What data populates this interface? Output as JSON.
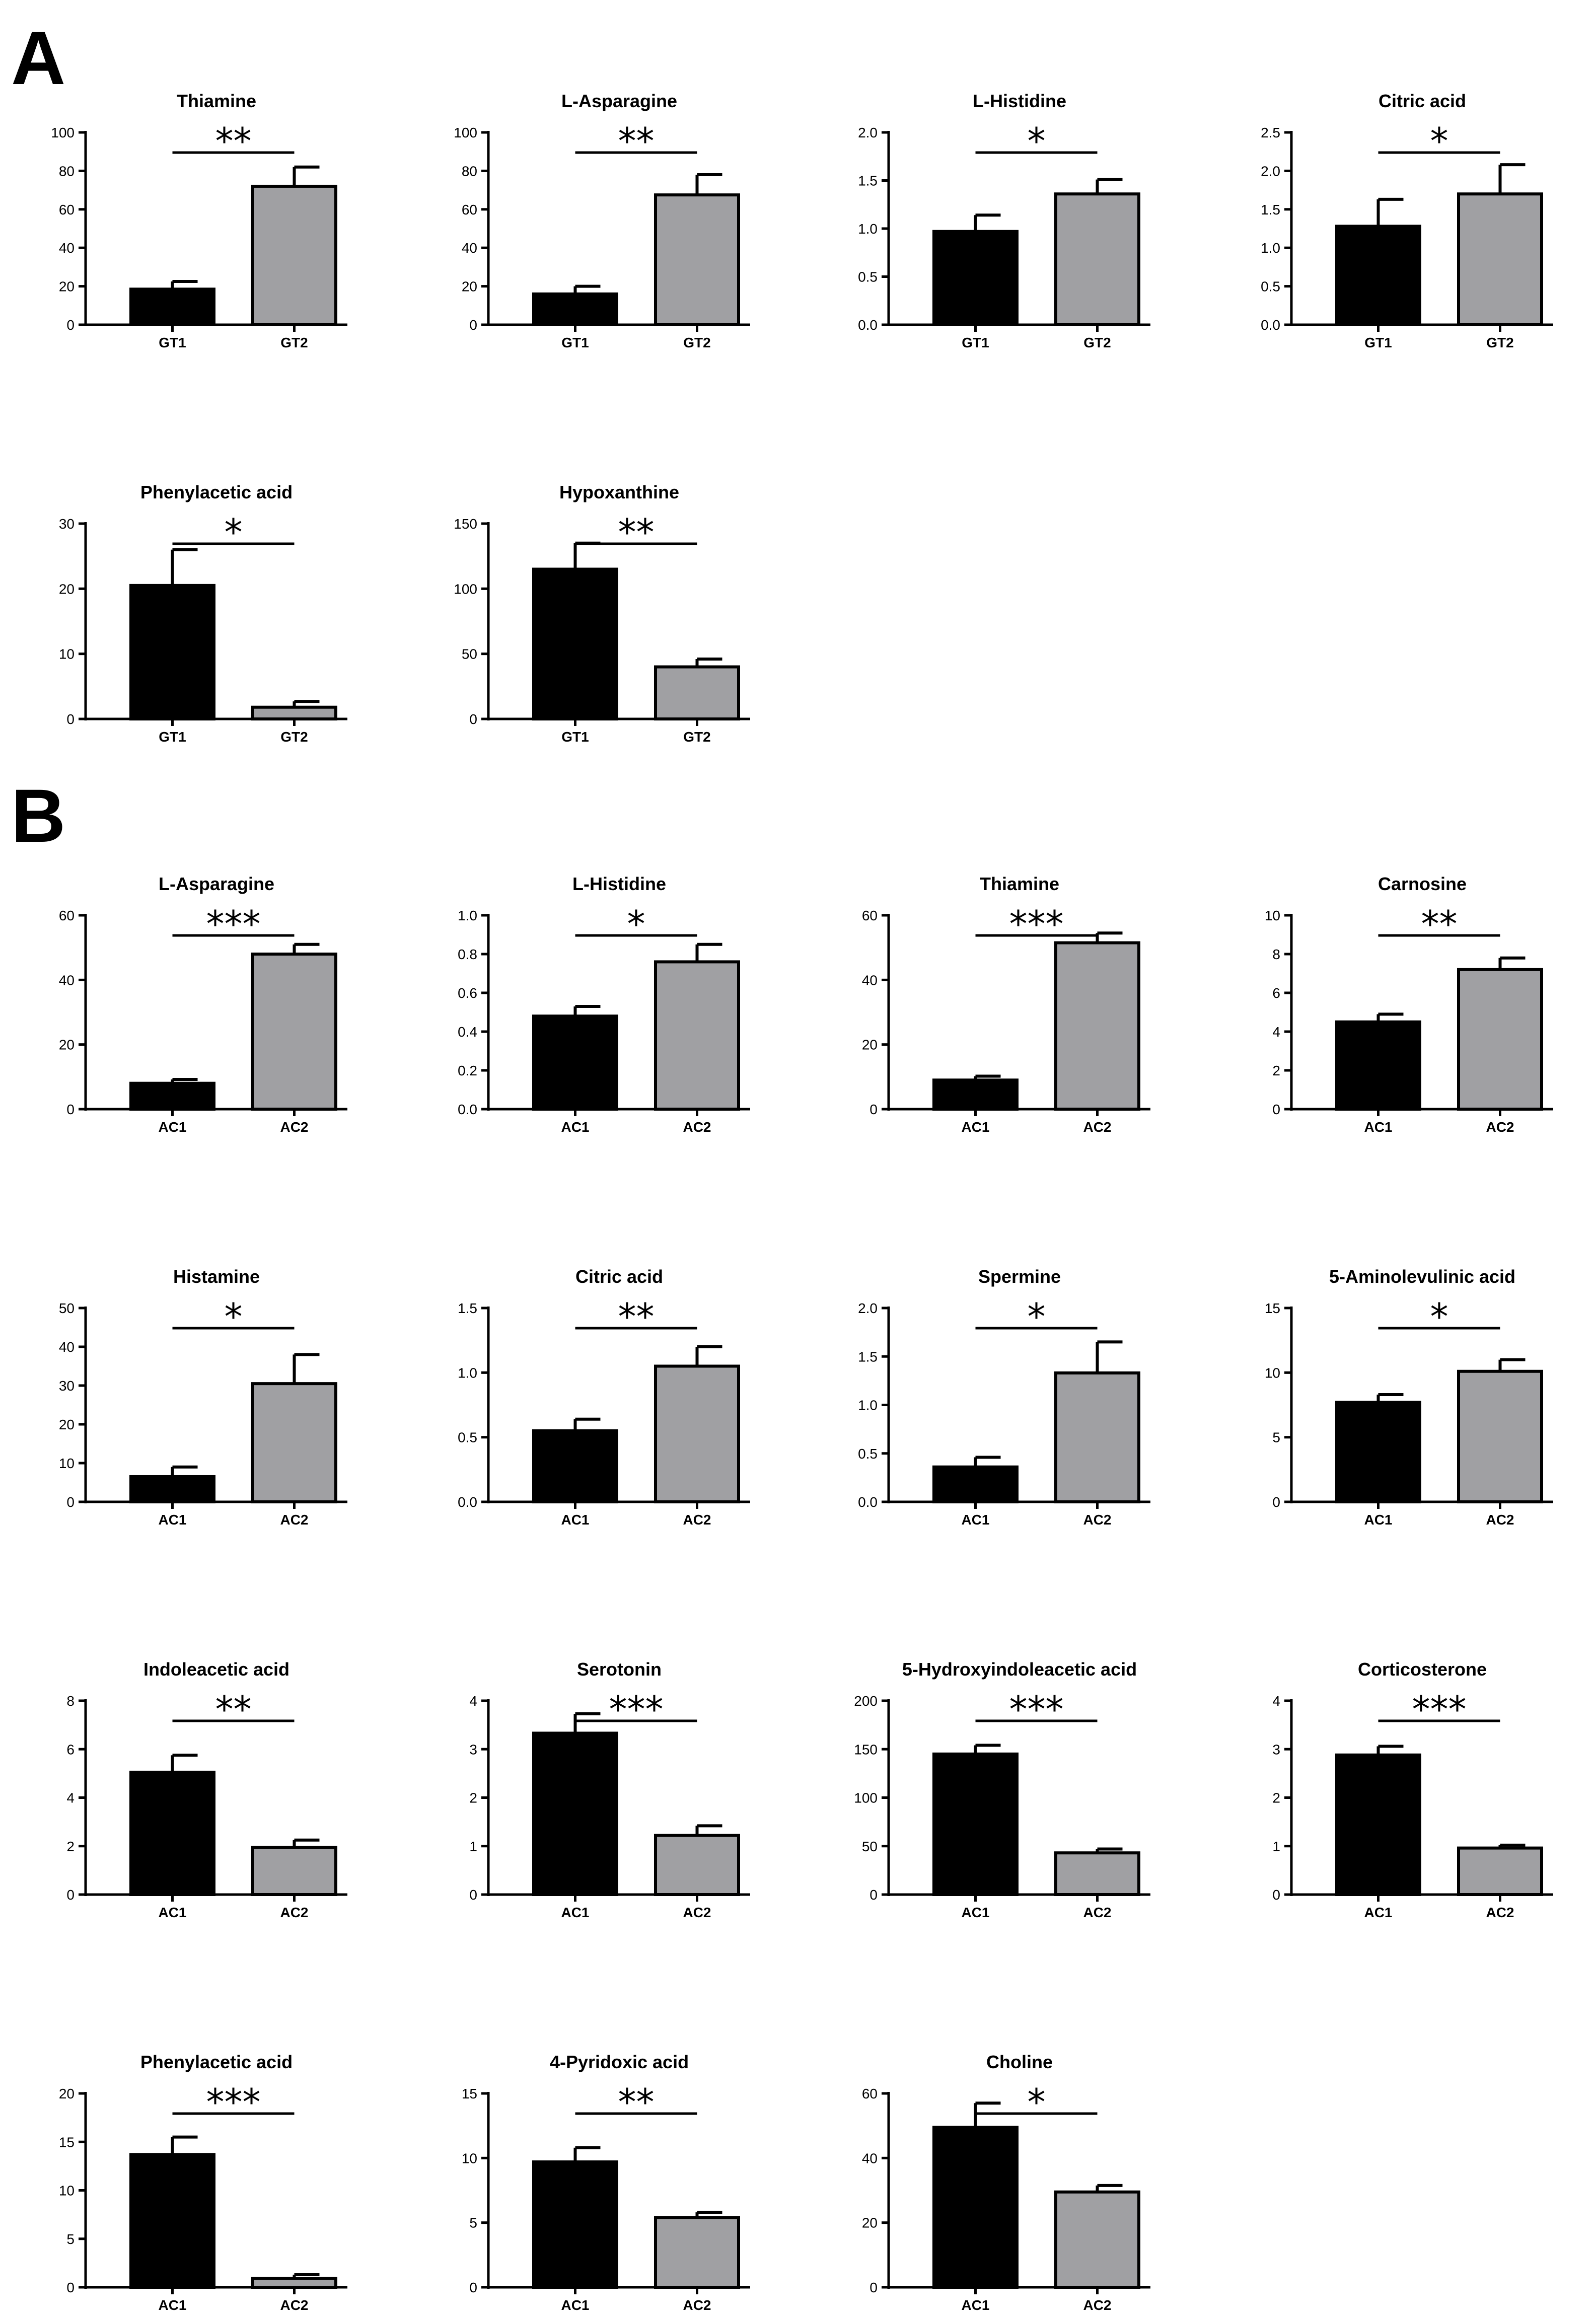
{
  "panels": [
    {
      "label": "A"
    },
    {
      "label": "B"
    }
  ],
  "colors": {
    "group1": "#000000",
    "group2": "#a0a0a3",
    "axis": "#000000"
  },
  "chart_data": [
    {
      "panel": "A",
      "type": "bar",
      "title": "Thiamine",
      "categories": [
        "GT1",
        "GT2"
      ],
      "values": [
        18.5,
        72
      ],
      "errors": [
        4,
        10
      ],
      "ylim": [
        0,
        100
      ],
      "yticks": [
        0,
        20,
        40,
        60,
        80,
        100
      ],
      "ytick_labels": [
        "0",
        "20",
        "40",
        "60",
        "80",
        "100"
      ],
      "significance": "**"
    },
    {
      "panel": "A",
      "type": "bar",
      "title": "L-Asparagine",
      "categories": [
        "GT1",
        "GT2"
      ],
      "values": [
        16,
        67.5
      ],
      "errors": [
        4,
        10.5
      ],
      "ylim": [
        0,
        100
      ],
      "yticks": [
        0,
        20,
        40,
        60,
        80,
        100
      ],
      "ytick_labels": [
        "0",
        "20",
        "40",
        "60",
        "80",
        "100"
      ],
      "significance": "**"
    },
    {
      "panel": "A",
      "type": "bar",
      "title": "L-Histidine",
      "categories": [
        "GT1",
        "GT2"
      ],
      "values": [
        0.97,
        1.36
      ],
      "errors": [
        0.17,
        0.15
      ],
      "ylim": [
        0,
        2.0
      ],
      "yticks": [
        0,
        0.5,
        1.0,
        1.5,
        2.0
      ],
      "ytick_labels": [
        "0.0",
        "0.5",
        "1.0",
        "1.5",
        "2.0"
      ],
      "significance": "*"
    },
    {
      "panel": "A",
      "type": "bar",
      "title": "Citric acid",
      "categories": [
        "GT1",
        "GT2"
      ],
      "values": [
        1.28,
        1.7
      ],
      "errors": [
        0.35,
        0.38
      ],
      "ylim": [
        0,
        2.5
      ],
      "yticks": [
        0,
        0.5,
        1.0,
        1.5,
        2.0,
        2.5
      ],
      "ytick_labels": [
        "0.0",
        "0.5",
        "1.0",
        "1.5",
        "2.0",
        "2.5"
      ],
      "significance": "*"
    },
    {
      "panel": "A",
      "type": "bar",
      "title": "Phenylacetic acid",
      "categories": [
        "GT1",
        "GT2"
      ],
      "values": [
        20.5,
        1.8
      ],
      "errors": [
        5.5,
        0.9
      ],
      "ylim": [
        0,
        30
      ],
      "yticks": [
        0,
        10,
        20,
        30
      ],
      "ytick_labels": [
        "0",
        "10",
        "20",
        "30"
      ],
      "significance": "*"
    },
    {
      "panel": "A",
      "type": "bar",
      "title": "Hypoxanthine",
      "categories": [
        "GT1",
        "GT2"
      ],
      "values": [
        115,
        40
      ],
      "errors": [
        20,
        6
      ],
      "ylim": [
        0,
        150
      ],
      "yticks": [
        0,
        50,
        100,
        150
      ],
      "ytick_labels": [
        "0",
        "50",
        "100",
        "150"
      ],
      "significance": "**"
    },
    {
      "panel": "B",
      "type": "bar",
      "title": "L-Asparagine",
      "categories": [
        "AC1",
        "AC2"
      ],
      "values": [
        8,
        48
      ],
      "errors": [
        1.2,
        3
      ],
      "ylim": [
        0,
        60
      ],
      "yticks": [
        0,
        20,
        40,
        60
      ],
      "ytick_labels": [
        "0",
        "20",
        "40",
        "60"
      ],
      "significance": "***"
    },
    {
      "panel": "B",
      "type": "bar",
      "title": "L-Histidine",
      "categories": [
        "AC1",
        "AC2"
      ],
      "values": [
        0.48,
        0.76
      ],
      "errors": [
        0.05,
        0.09
      ],
      "ylim": [
        0,
        1.0
      ],
      "yticks": [
        0,
        0.2,
        0.4,
        0.6,
        0.8,
        1.0
      ],
      "ytick_labels": [
        "0.0",
        "0.2",
        "0.4",
        "0.6",
        "0.8",
        "1.0"
      ],
      "significance": "*"
    },
    {
      "panel": "B",
      "type": "bar",
      "title": "Thiamine",
      "categories": [
        "AC1",
        "AC2"
      ],
      "values": [
        9,
        51.5
      ],
      "errors": [
        1.2,
        3
      ],
      "ylim": [
        0,
        60
      ],
      "yticks": [
        0,
        20,
        40,
        60
      ],
      "ytick_labels": [
        "0",
        "20",
        "40",
        "60"
      ],
      "significance": "***"
    },
    {
      "panel": "B",
      "type": "bar",
      "title": "Carnosine",
      "categories": [
        "AC1",
        "AC2"
      ],
      "values": [
        4.5,
        7.2
      ],
      "errors": [
        0.4,
        0.6
      ],
      "ylim": [
        0,
        10
      ],
      "yticks": [
        0,
        2,
        4,
        6,
        8,
        10
      ],
      "ytick_labels": [
        "0",
        "2",
        "4",
        "6",
        "8",
        "10"
      ],
      "significance": "**"
    },
    {
      "panel": "B",
      "type": "bar",
      "title": "Histamine",
      "categories": [
        "AC1",
        "AC2"
      ],
      "values": [
        6.5,
        30.5
      ],
      "errors": [
        2.5,
        7.5
      ],
      "ylim": [
        0,
        50
      ],
      "yticks": [
        0,
        10,
        20,
        30,
        40,
        50
      ],
      "ytick_labels": [
        "0",
        "10",
        "20",
        "30",
        "40",
        "50"
      ],
      "significance": "*"
    },
    {
      "panel": "B",
      "type": "bar",
      "title": "Citric acid",
      "categories": [
        "AC1",
        "AC2"
      ],
      "values": [
        0.55,
        1.05
      ],
      "errors": [
        0.09,
        0.15
      ],
      "ylim": [
        0,
        1.5
      ],
      "yticks": [
        0,
        0.5,
        1.0,
        1.5
      ],
      "ytick_labels": [
        "0.0",
        "0.5",
        "1.0",
        "1.5"
      ],
      "significance": "**"
    },
    {
      "panel": "B",
      "type": "bar",
      "title": "Spermine",
      "categories": [
        "AC1",
        "AC2"
      ],
      "values": [
        0.36,
        1.33
      ],
      "errors": [
        0.1,
        0.32
      ],
      "ylim": [
        0,
        2.0
      ],
      "yticks": [
        0,
        0.5,
        1.0,
        1.5,
        2.0
      ],
      "ytick_labels": [
        "0.0",
        "0.5",
        "1.0",
        "1.5",
        "2.0"
      ],
      "significance": "*"
    },
    {
      "panel": "B",
      "type": "bar",
      "title": "5-Aminolevulinic acid",
      "categories": [
        "AC1",
        "AC2"
      ],
      "values": [
        7.7,
        10.1
      ],
      "errors": [
        0.6,
        0.9
      ],
      "ylim": [
        0,
        15
      ],
      "yticks": [
        0,
        5,
        10,
        15
      ],
      "ytick_labels": [
        "0",
        "5",
        "10",
        "15"
      ],
      "significance": "*"
    },
    {
      "panel": "B",
      "type": "bar",
      "title": "Indoleacetic acid",
      "categories": [
        "AC1",
        "AC2"
      ],
      "values": [
        5.05,
        1.95
      ],
      "errors": [
        0.7,
        0.3
      ],
      "ylim": [
        0,
        8
      ],
      "yticks": [
        0,
        2,
        4,
        6,
        8
      ],
      "ytick_labels": [
        "0",
        "2",
        "4",
        "6",
        "8"
      ],
      "significance": "**"
    },
    {
      "panel": "B",
      "type": "bar",
      "title": "Serotonin",
      "categories": [
        "AC1",
        "AC2"
      ],
      "values": [
        3.33,
        1.22
      ],
      "errors": [
        0.4,
        0.2
      ],
      "ylim": [
        0,
        4
      ],
      "yticks": [
        0,
        1,
        2,
        3,
        4
      ],
      "ytick_labels": [
        "0",
        "1",
        "2",
        "3",
        "4"
      ],
      "significance": "***"
    },
    {
      "panel": "B",
      "type": "bar",
      "title": "5-Hydroxyindoleacetic acid",
      "categories": [
        "AC1",
        "AC2"
      ],
      "values": [
        145,
        43
      ],
      "errors": [
        9,
        4
      ],
      "ylim": [
        0,
        200
      ],
      "yticks": [
        0,
        50,
        100,
        150,
        200
      ],
      "ytick_labels": [
        "0",
        "50",
        "100",
        "150",
        "200"
      ],
      "significance": "***"
    },
    {
      "panel": "B",
      "type": "bar",
      "title": "Corticosterone",
      "categories": [
        "AC1",
        "AC2"
      ],
      "values": [
        2.88,
        0.96
      ],
      "errors": [
        0.18,
        0.06
      ],
      "ylim": [
        0,
        4
      ],
      "yticks": [
        0,
        1,
        2,
        3,
        4
      ],
      "ytick_labels": [
        "0",
        "1",
        "2",
        "3",
        "4"
      ],
      "significance": "***"
    },
    {
      "panel": "B",
      "type": "bar",
      "title": "Phenylacetic acid",
      "categories": [
        "AC1",
        "AC2"
      ],
      "values": [
        13.7,
        0.9
      ],
      "errors": [
        1.8,
        0.4
      ],
      "ylim": [
        0,
        20
      ],
      "yticks": [
        0,
        5,
        10,
        15,
        20
      ],
      "ytick_labels": [
        "0",
        "5",
        "10",
        "15",
        "20"
      ],
      "significance": "***"
    },
    {
      "panel": "B",
      "type": "bar",
      "title": "4-Pyridoxic acid",
      "categories": [
        "AC1",
        "AC2"
      ],
      "values": [
        9.7,
        5.4
      ],
      "errors": [
        1.1,
        0.4
      ],
      "ylim": [
        0,
        15
      ],
      "yticks": [
        0,
        5,
        10,
        15
      ],
      "ytick_labels": [
        "0",
        "5",
        "10",
        "15"
      ],
      "significance": "**"
    },
    {
      "panel": "B",
      "type": "bar",
      "title": "Choline",
      "categories": [
        "AC1",
        "AC2"
      ],
      "values": [
        49.5,
        29.5
      ],
      "errors": [
        7.5,
        2
      ],
      "ylim": [
        0,
        60
      ],
      "yticks": [
        0,
        20,
        40,
        60
      ],
      "ytick_labels": [
        "0",
        "20",
        "40",
        "60"
      ],
      "significance": "*"
    }
  ]
}
